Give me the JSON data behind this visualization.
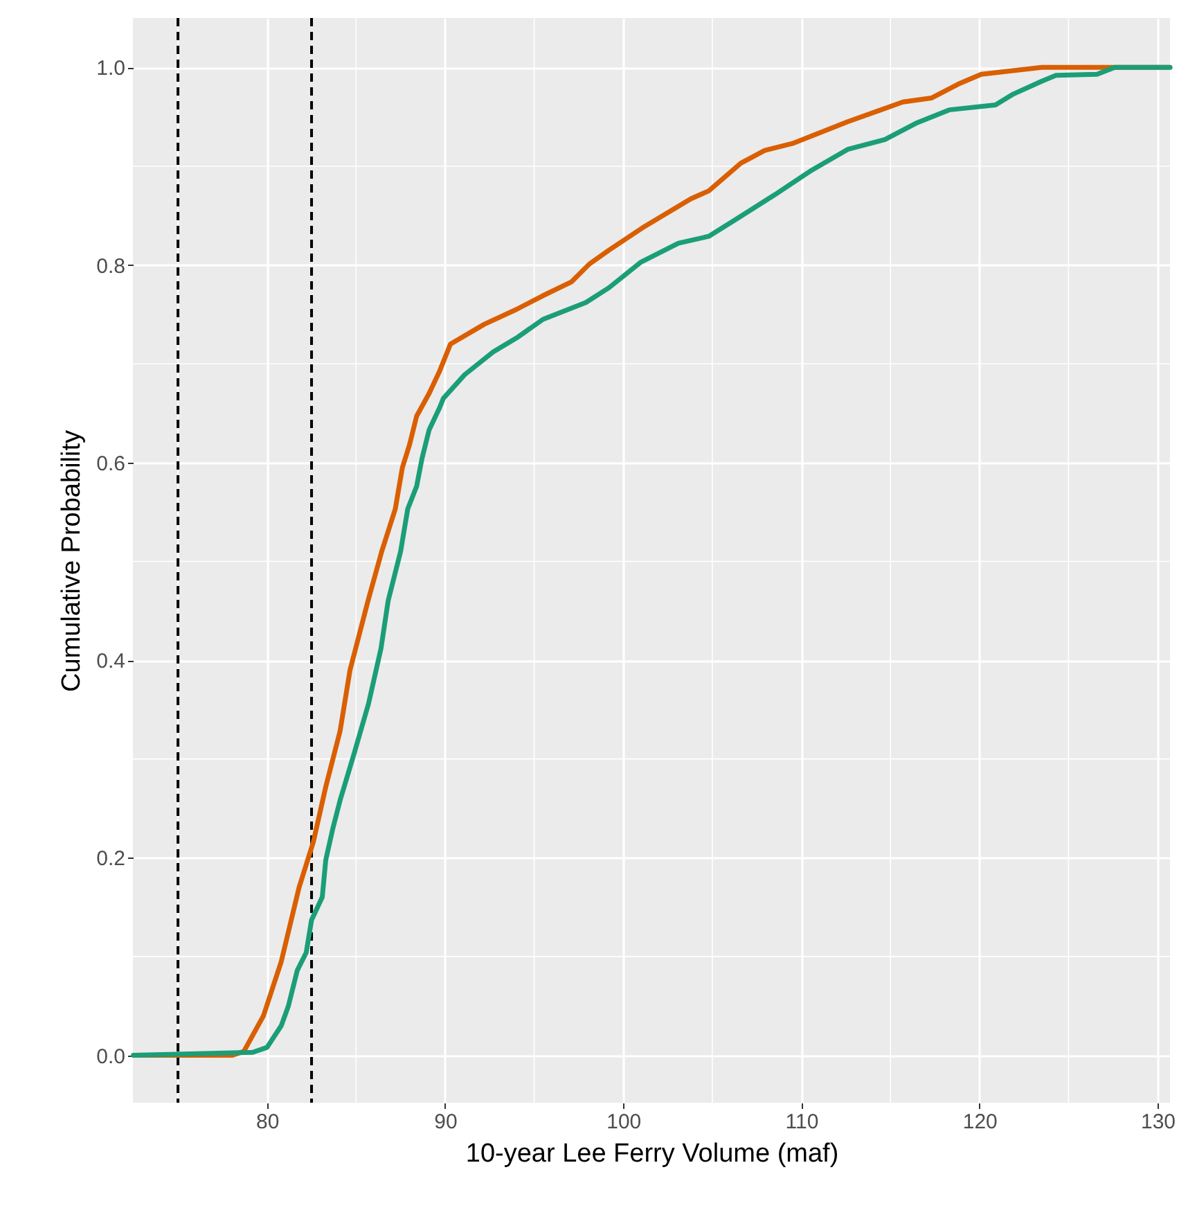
{
  "chart_data": {
    "type": "line",
    "xlabel": "10-year Lee Ferry Volume (maf)",
    "ylabel": "Cumulative Probability",
    "xlim": [
      72.47,
      130.7
    ],
    "ylim": [
      -0.048,
      1.05
    ],
    "xticks": [
      80,
      90,
      100,
      110,
      120,
      130
    ],
    "yticks": [
      {
        "value": 0,
        "label": "0.0"
      },
      0.2,
      0.4,
      0.6,
      0.8,
      {
        "value": 1,
        "label": "1.0"
      }
    ],
    "grid": true,
    "legend": false,
    "line_style": "solid",
    "series": [
      {
        "color": "#d95f02",
        "x": [
          72.5,
          78.06,
          78.7,
          79.8,
          80.8,
          81.8,
          82.6,
          83.3,
          84.1,
          84.66,
          85.67,
          86.44,
          87.2,
          87.6,
          88.0,
          88.4,
          89.1,
          89.7,
          90.3,
          92.2,
          94.0,
          95.5,
          97.1,
          98.1,
          99.2,
          101.2,
          103.8,
          104.8,
          106.6,
          107.95,
          109.5,
          112.6,
          115.7,
          117.3,
          118.8,
          120.1,
          123.5,
          130.7
        ],
        "values": [
          0,
          0,
          0.004,
          0.04,
          0.095,
          0.17,
          0.216,
          0.272,
          0.328,
          0.39,
          0.46,
          0.51,
          0.553,
          0.595,
          0.618,
          0.647,
          0.67,
          0.693,
          0.72,
          0.74,
          0.755,
          0.769,
          0.783,
          0.801,
          0.815,
          0.839,
          0.867,
          0.875,
          0.903,
          0.916,
          0.923,
          0.945,
          0.965,
          0.969,
          0.983,
          0.993,
          1.0,
          1.0
        ]
      },
      {
        "color": "#1b9e77",
        "x": [
          72.5,
          79.2,
          80.0,
          80.8,
          81.2,
          81.7,
          82.2,
          82.5,
          83.1,
          83.3,
          83.7,
          84.1,
          84.9,
          85.7,
          86.4,
          86.8,
          87.5,
          87.9,
          88.4,
          88.7,
          89.1,
          89.7,
          89.9,
          91.1,
          92.7,
          94.0,
          95.5,
          97.9,
          99.2,
          101.0,
          103.1,
          104.8,
          106.4,
          108.5,
          110.5,
          112.6,
          114.7,
          116.5,
          118.3,
          120.9,
          121.9,
          123.5,
          124.3,
          126.6,
          127.6,
          130.7
        ],
        "values": [
          0,
          0.003,
          0.008,
          0.03,
          0.05,
          0.086,
          0.104,
          0.137,
          0.16,
          0.198,
          0.23,
          0.258,
          0.306,
          0.356,
          0.412,
          0.46,
          0.51,
          0.553,
          0.576,
          0.604,
          0.633,
          0.656,
          0.665,
          0.689,
          0.712,
          0.726,
          0.745,
          0.762,
          0.777,
          0.803,
          0.822,
          0.829,
          0.847,
          0.871,
          0.895,
          0.917,
          0.927,
          0.944,
          0.957,
          0.962,
          0.973,
          0.986,
          0.992,
          0.993,
          1.0,
          1.0
        ]
      }
    ],
    "ref_lines": [
      {
        "axis": "x",
        "value": 75,
        "color": "#000000",
        "line_style": "dashed"
      },
      {
        "axis": "x",
        "value": 82.5,
        "color": "#000000",
        "line_style": "dashed"
      }
    ]
  }
}
